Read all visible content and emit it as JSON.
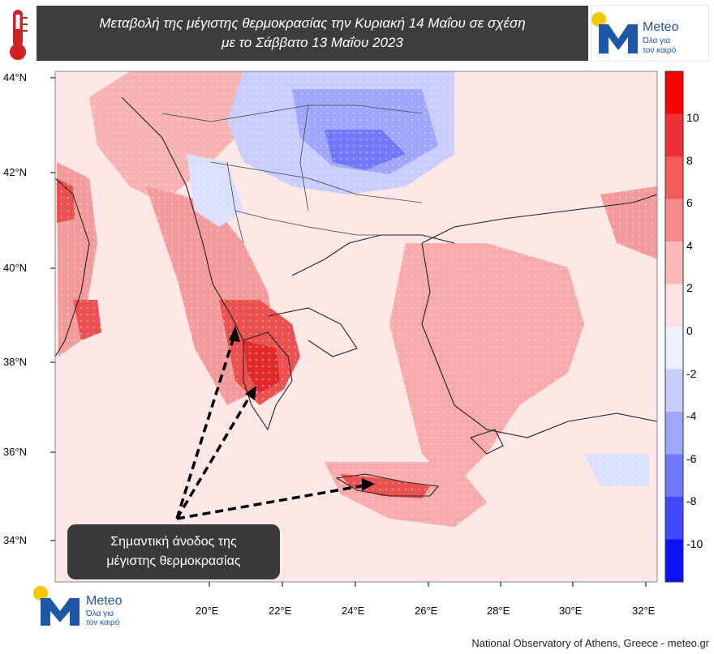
{
  "title": {
    "line1": "Μεταβολή της μέγιστης θερμοκρασίας την Κυριακή 14 Μαΐου σε σχέση",
    "line2": "με το Σάββατο 13 Μαΐου 2023"
  },
  "logo": {
    "name": "Meteo",
    "tagline_line1": "Όλα για",
    "tagline_line2": "τον καιρό"
  },
  "axes": {
    "lat_labels": [
      "44°N",
      "42°N",
      "40°N",
      "38°N",
      "36°N",
      "34°N"
    ],
    "lon_labels": [
      "20°E",
      "22°E",
      "24°E",
      "26°E",
      "28°E",
      "30°E",
      "32°E"
    ]
  },
  "colorbar": {
    "labels": [
      "10",
      "8",
      "6",
      "4",
      "2",
      "0",
      "-2",
      "-4",
      "-6",
      "-8",
      "-10"
    ],
    "colors": [
      "#ff0000",
      "#f03030",
      "#f55a5a",
      "#f88a8a",
      "#fbb8b8",
      "#fde2e2",
      "#eef0ff",
      "#c8ccff",
      "#9fa6ff",
      "#6f78ff",
      "#3f49ff",
      "#1010ff"
    ]
  },
  "callout": {
    "line1": "Σημαντική άνοδος της",
    "line2": "μέγιστης  θερμοκρασίας"
  },
  "credit": "National Observatory of Athens, Greece - meteo.gr"
}
